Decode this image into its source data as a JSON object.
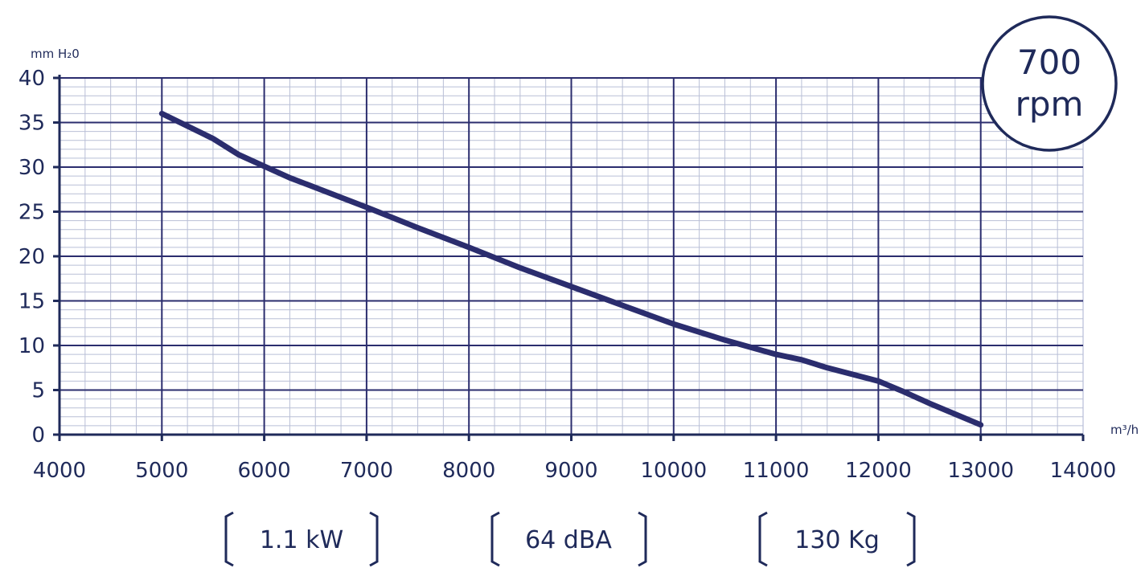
{
  "chart_data": {
    "type": "line",
    "x_unit": "m³/h",
    "y_unit": "mm H₂0",
    "xlim": [
      4000,
      14000
    ],
    "ylim": [
      0,
      40
    ],
    "x_ticks": [
      "4000",
      "5000",
      "6000",
      "7000",
      "8000",
      "9000",
      "10000",
      "11000",
      "12000",
      "13000",
      "14000"
    ],
    "y_ticks": [
      "0",
      "5",
      "10",
      "15",
      "20",
      "25",
      "30",
      "35",
      "40"
    ],
    "grid": true,
    "series": [
      {
        "color": "#2b2d6e",
        "points": [
          {
            "x": 5000,
            "y": 36
          },
          {
            "x": 5500,
            "y": 33.2
          },
          {
            "x": 5750,
            "y": 31.4
          },
          {
            "x": 6000,
            "y": 30.1
          },
          {
            "x": 6250,
            "y": 28.8
          },
          {
            "x": 6500,
            "y": 27.7
          },
          {
            "x": 7000,
            "y": 25.5
          },
          {
            "x": 7500,
            "y": 23.2
          },
          {
            "x": 8000,
            "y": 21
          },
          {
            "x": 8500,
            "y": 18.7
          },
          {
            "x": 9000,
            "y": 16.6
          },
          {
            "x": 9500,
            "y": 14.5
          },
          {
            "x": 10000,
            "y": 12.4
          },
          {
            "x": 10500,
            "y": 10.6
          },
          {
            "x": 11000,
            "y": 9
          },
          {
            "x": 11250,
            "y": 8.4
          },
          {
            "x": 11500,
            "y": 7.5
          },
          {
            "x": 12000,
            "y": 6
          },
          {
            "x": 12250,
            "y": 4.8
          },
          {
            "x": 12500,
            "y": 3.5
          },
          {
            "x": 13000,
            "y": 1.1
          }
        ]
      }
    ]
  },
  "speed_badge": {
    "value": "700",
    "unit": "rpm"
  },
  "specs": [
    {
      "label": "1.1 kW"
    },
    {
      "label": "64 dBA"
    },
    {
      "label": "130 Kg"
    }
  ],
  "colors": {
    "ink": "#1f2a5a",
    "line": "#2b2d6e",
    "major_grid": "#2b2d6e",
    "minor_grid": "#b9bfd6",
    "frame": "#c5cae0"
  }
}
